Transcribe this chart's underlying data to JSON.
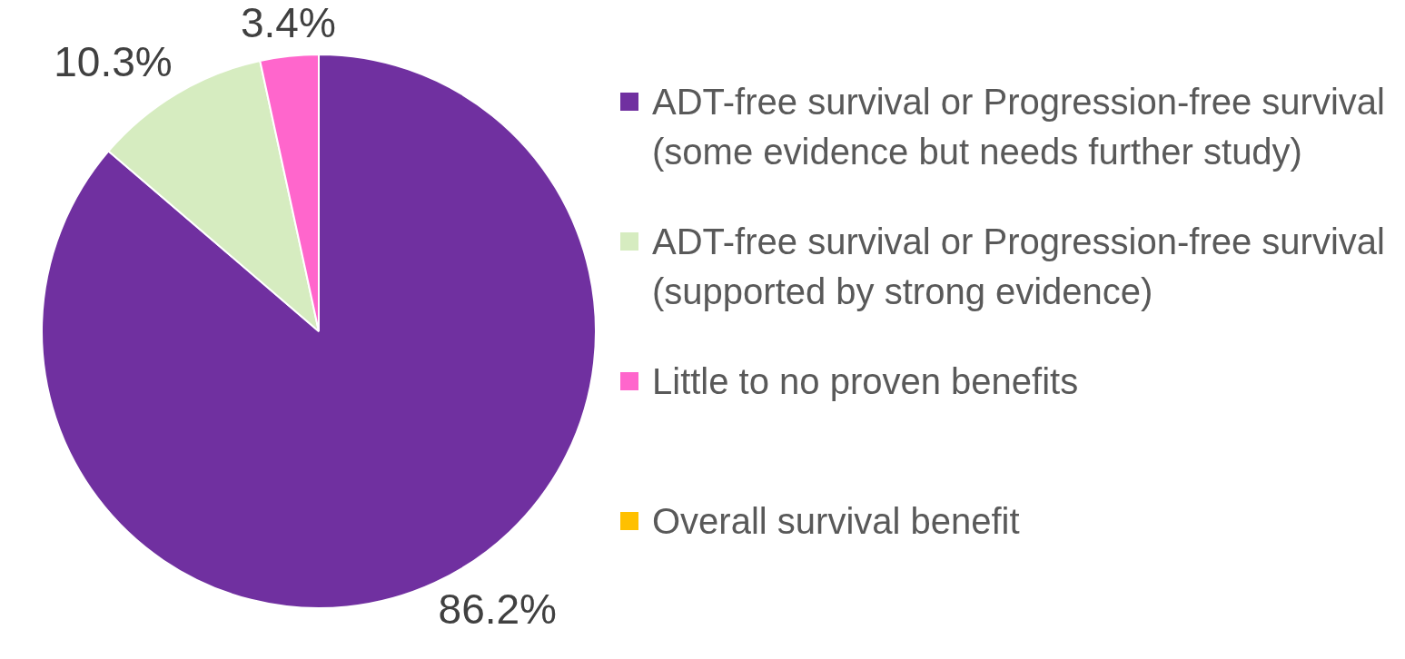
{
  "chart_data": {
    "type": "pie",
    "categories": [
      "ADT-free survival or Progression-free survival (some evidence but needs further study)",
      "ADT-free survival or Progression-free survival (supported by strong evidence)",
      "Little to no proven benefits",
      "Overall survival benefit"
    ],
    "values": [
      86.2,
      10.3,
      3.4,
      0
    ],
    "colors": [
      "#7030a0",
      "#d6ecc0",
      "#ff66cc",
      "#ffc000"
    ],
    "value_labels": [
      "86.2%",
      "10.3%",
      "3.4%",
      null
    ],
    "legend": "right"
  }
}
